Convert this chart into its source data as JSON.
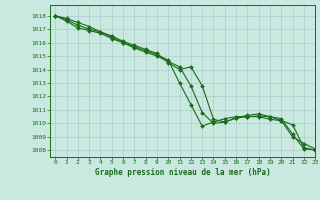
{
  "title": "Graphe pression niveau de la mer (hPa)",
  "bg_color": "#c8e8e0",
  "grid_color": "#aacccc",
  "line_color": "#1a6b1a",
  "xlim": [
    -0.5,
    23
  ],
  "ylim": [
    1007.5,
    1018.8
  ],
  "yticks": [
    1008,
    1009,
    1010,
    1011,
    1012,
    1013,
    1014,
    1015,
    1016,
    1017,
    1018
  ],
  "xticks": [
    0,
    1,
    2,
    3,
    4,
    5,
    6,
    7,
    8,
    9,
    10,
    11,
    12,
    13,
    14,
    15,
    16,
    17,
    18,
    19,
    20,
    21,
    22,
    23
  ],
  "line1_x": [
    0,
    1,
    2,
    3,
    4,
    5,
    6,
    7,
    8,
    9,
    10,
    11,
    12,
    13,
    14,
    15,
    16,
    17,
    18,
    19,
    20,
    21,
    22,
    23
  ],
  "line1_y": [
    1018.0,
    1017.8,
    1017.5,
    1017.2,
    1016.8,
    1016.5,
    1016.1,
    1015.8,
    1015.5,
    1015.2,
    1014.5,
    1014.0,
    1014.2,
    1012.8,
    1010.3,
    1010.1,
    1010.4,
    1010.5,
    1010.5,
    1010.3,
    1010.2,
    1009.9,
    1008.2,
    1008.0
  ],
  "line2_x": [
    0,
    1,
    2,
    3,
    4,
    5,
    6,
    7,
    8,
    9,
    10,
    11,
    12,
    13,
    14,
    15,
    16,
    17,
    18,
    19,
    20,
    21,
    22,
    23
  ],
  "line2_y": [
    1018.0,
    1017.6,
    1017.1,
    1016.9,
    1016.7,
    1016.3,
    1016.0,
    1015.6,
    1015.3,
    1015.0,
    1014.6,
    1014.2,
    1012.8,
    1010.8,
    1010.0,
    1010.1,
    1010.4,
    1010.6,
    1010.7,
    1010.5,
    1010.2,
    1009.0,
    1008.5,
    1008.1
  ],
  "line3_x": [
    0,
    1,
    2,
    3,
    4,
    5,
    6,
    7,
    8,
    9,
    10,
    11,
    12,
    13,
    14,
    15,
    16,
    17,
    18,
    19,
    20,
    21,
    22,
    23
  ],
  "line3_y": [
    1018.0,
    1017.7,
    1017.3,
    1017.0,
    1016.8,
    1016.4,
    1016.0,
    1015.7,
    1015.4,
    1015.1,
    1014.7,
    1013.0,
    1011.4,
    1009.8,
    1010.1,
    1010.35,
    1010.5,
    1010.5,
    1010.55,
    1010.5,
    1010.35,
    1009.2,
    1008.1,
    1008.05
  ]
}
